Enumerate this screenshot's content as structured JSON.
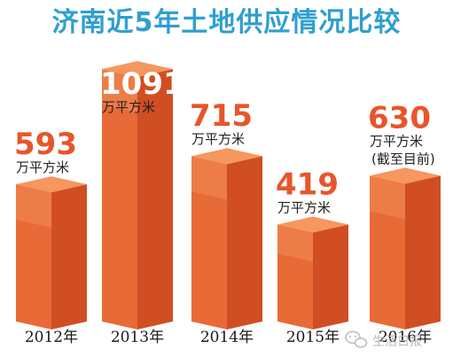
{
  "chart_data": {
    "type": "bar",
    "title": "济南近5年土地供应情况比较",
    "categories": [
      "2012年",
      "2013年",
      "2014年",
      "2015年",
      "2016年"
    ],
    "values": [
      593,
      1091,
      715,
      419,
      630
    ],
    "value_labels": [
      "593",
      "1091",
      "715",
      "419",
      "630"
    ],
    "unit": "万平方米",
    "notes": [
      "",
      "",
      "",
      "",
      "(截至目前)"
    ],
    "ylim": [
      0,
      1091
    ],
    "grid": false,
    "legend": "none"
  },
  "colors": {
    "title": "#2f9fcf",
    "value": "#e8552a",
    "value_on_bar": "#ffffff",
    "bar_front": "#e86a37",
    "bar_side": "#d14e22",
    "bar_top": "#f5975f",
    "bar_highlight": "#f08b52"
  },
  "watermark": {
    "icon": "wechat-icon",
    "text": "生活日报"
  }
}
